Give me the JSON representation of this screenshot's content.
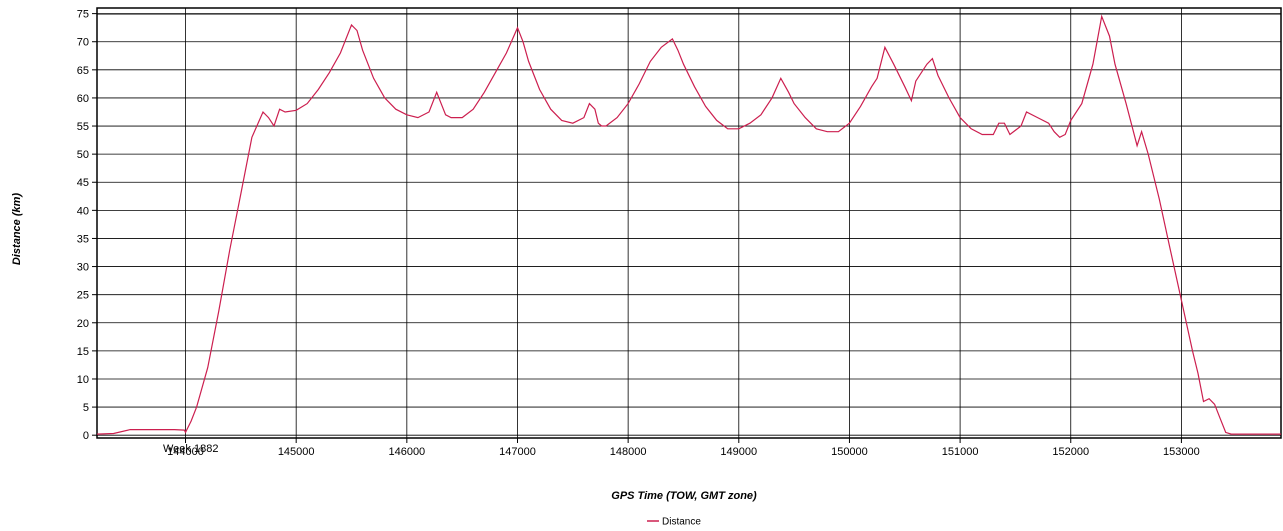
{
  "chart_data": {
    "type": "line",
    "xlabel": "GPS Time (TOW, GMT zone)",
    "ylabel": "Distance (km)",
    "xlim": [
      143200,
      153900
    ],
    "ylim": [
      -0.5,
      76
    ],
    "x_ticks": [
      144000,
      145000,
      146000,
      147000,
      148000,
      149000,
      150000,
      151000,
      152000,
      153000
    ],
    "x_tick_labels": [
      "144000",
      "145000",
      "146000",
      "147000",
      "148000",
      "149000",
      "150000",
      "151000",
      "152000",
      "153000"
    ],
    "x_sub_label": "Week 1882",
    "y_ticks": [
      0,
      5,
      10,
      15,
      20,
      25,
      30,
      35,
      40,
      45,
      50,
      55,
      60,
      65,
      70,
      75
    ],
    "y_tick_labels": [
      "0",
      "5",
      "10",
      "15",
      "20",
      "25",
      "30",
      "35",
      "40",
      "45",
      "50",
      "55",
      "60",
      "65",
      "70",
      "75"
    ],
    "grid": true,
    "legend_position": "bottom-center",
    "series": [
      {
        "name": "Distance",
        "color": "#cc1f4f",
        "x": [
          143200,
          143350,
          143500,
          143700,
          143900,
          143990,
          144000,
          144050,
          144100,
          144200,
          144300,
          144400,
          144500,
          144600,
          144700,
          144750,
          144800,
          144850,
          144900,
          145000,
          145100,
          145200,
          145300,
          145400,
          145500,
          145550,
          145600,
          145700,
          145800,
          145900,
          146000,
          146100,
          146200,
          146270,
          146300,
          146350,
          146400,
          146500,
          146600,
          146700,
          146800,
          146900,
          147000,
          147050,
          147100,
          147200,
          147300,
          147400,
          147500,
          147600,
          147650,
          147700,
          147730,
          147760,
          147800,
          147900,
          148000,
          148100,
          148200,
          148300,
          148400,
          148450,
          148500,
          148600,
          148700,
          148800,
          148900,
          149000,
          149100,
          149200,
          149300,
          149380,
          149450,
          149500,
          149600,
          149700,
          149800,
          149900,
          150000,
          150100,
          150200,
          150250,
          150320,
          150400,
          150500,
          150560,
          150600,
          150700,
          150750,
          150800,
          150900,
          151000,
          151100,
          151200,
          151300,
          151350,
          151400,
          151450,
          151550,
          151600,
          151700,
          151800,
          151850,
          151900,
          151950,
          152000,
          152100,
          152200,
          152280,
          152350,
          152400,
          152500,
          152600,
          152640,
          152700,
          152800,
          152900,
          153000,
          153100,
          153150,
          153200,
          153250,
          153300,
          153350,
          153400,
          153450,
          153500,
          153600,
          153900
        ],
        "values": [
          0.2,
          0.3,
          1.0,
          1.0,
          1.0,
          0.9,
          0.5,
          2.5,
          5.0,
          12.0,
          22.0,
          33.0,
          43.0,
          53.0,
          57.5,
          56.5,
          55.0,
          58.0,
          57.5,
          57.8,
          59.0,
          61.5,
          64.5,
          68.0,
          73.0,
          72.0,
          68.5,
          63.5,
          60.0,
          58.0,
          57.0,
          56.5,
          57.5,
          61.0,
          59.5,
          57.0,
          56.5,
          56.5,
          58.0,
          61.0,
          64.5,
          68.0,
          72.5,
          70.0,
          66.5,
          61.5,
          58.0,
          56.0,
          55.5,
          56.5,
          59.0,
          58.0,
          55.5,
          55.0,
          55.0,
          56.5,
          59.0,
          62.5,
          66.5,
          69.0,
          70.5,
          68.5,
          66.0,
          62.0,
          58.5,
          56.0,
          54.5,
          54.5,
          55.5,
          57.0,
          60.0,
          63.5,
          61.0,
          59.0,
          56.5,
          54.5,
          54.0,
          54.0,
          55.5,
          58.5,
          62.0,
          63.5,
          69.0,
          66.0,
          62.0,
          59.5,
          63.0,
          66.0,
          67.0,
          64.0,
          60.0,
          56.5,
          54.5,
          53.5,
          53.5,
          55.5,
          55.5,
          53.5,
          55.0,
          57.5,
          56.5,
          55.5,
          54.0,
          53.0,
          53.5,
          56.0,
          59.0,
          66.0,
          74.5,
          71.0,
          66.0,
          59.0,
          51.5,
          54.0,
          50.0,
          42.0,
          33.0,
          24.0,
          15.0,
          11.0,
          6.0,
          6.5,
          5.5,
          3.0,
          0.5,
          0.2,
          0.2,
          0.2,
          0.2
        ]
      }
    ]
  }
}
